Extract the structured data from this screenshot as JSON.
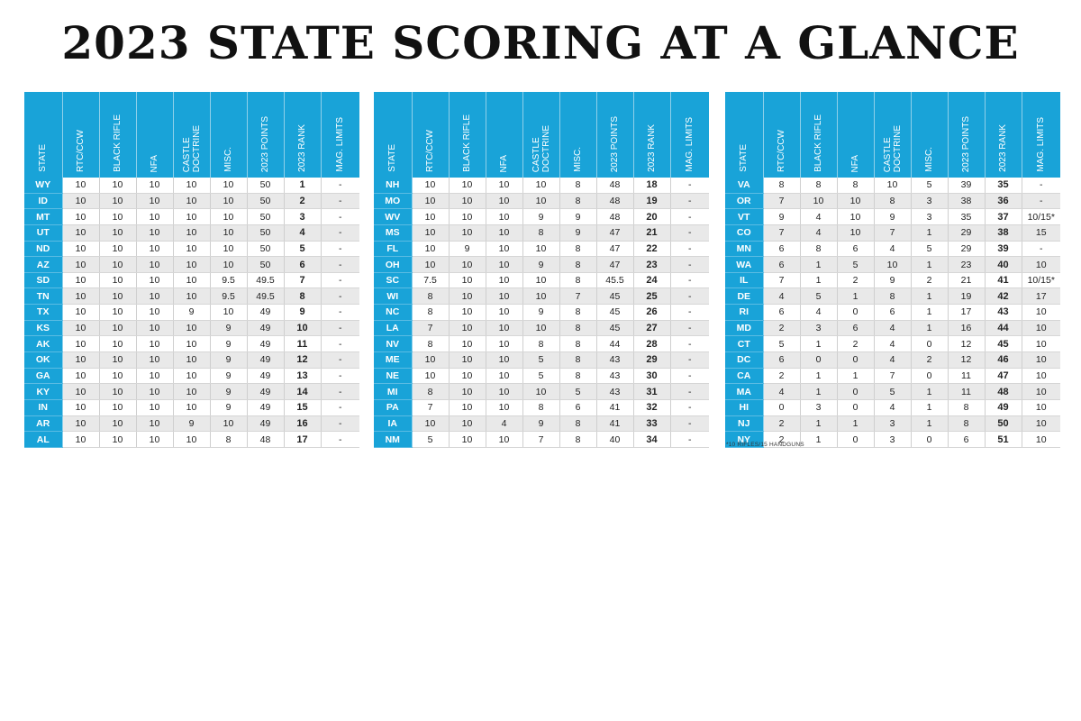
{
  "title": "2023 STATE SCORING AT A GLANCE",
  "colors": {
    "header": "#19a3d8",
    "stripe": "#e9e9e9"
  },
  "chart_data": {
    "type": "table",
    "title": "2023 STATE SCORING AT A GLANCE",
    "columns": [
      "STATE",
      "RTC/CCW",
      "BLACK RIFLE",
      "NFA",
      "CASTLE\nDOCTRINE",
      "MISC.",
      "2023 POINTS",
      "2023 RANK",
      "MAG. LIMITS"
    ],
    "tables": [
      {
        "rows": [
          [
            "WY",
            "10",
            "10",
            "10",
            "10",
            "10",
            "50",
            "1",
            "-"
          ],
          [
            "ID",
            "10",
            "10",
            "10",
            "10",
            "10",
            "50",
            "2",
            "-"
          ],
          [
            "MT",
            "10",
            "10",
            "10",
            "10",
            "10",
            "50",
            "3",
            "-"
          ],
          [
            "UT",
            "10",
            "10",
            "10",
            "10",
            "10",
            "50",
            "4",
            "-"
          ],
          [
            "ND",
            "10",
            "10",
            "10",
            "10",
            "10",
            "50",
            "5",
            "-"
          ],
          [
            "AZ",
            "10",
            "10",
            "10",
            "10",
            "10",
            "50",
            "6",
            "-"
          ],
          [
            "SD",
            "10",
            "10",
            "10",
            "10",
            "9.5",
            "49.5",
            "7",
            "-"
          ],
          [
            "TN",
            "10",
            "10",
            "10",
            "10",
            "9.5",
            "49.5",
            "8",
            "-"
          ],
          [
            "TX",
            "10",
            "10",
            "10",
            "9",
            "10",
            "49",
            "9",
            "-"
          ],
          [
            "KS",
            "10",
            "10",
            "10",
            "10",
            "9",
            "49",
            "10",
            "-"
          ],
          [
            "AK",
            "10",
            "10",
            "10",
            "10",
            "9",
            "49",
            "11",
            "-"
          ],
          [
            "OK",
            "10",
            "10",
            "10",
            "10",
            "9",
            "49",
            "12",
            "-"
          ],
          [
            "GA",
            "10",
            "10",
            "10",
            "10",
            "9",
            "49",
            "13",
            "-"
          ],
          [
            "KY",
            "10",
            "10",
            "10",
            "10",
            "9",
            "49",
            "14",
            "-"
          ],
          [
            "IN",
            "10",
            "10",
            "10",
            "10",
            "9",
            "49",
            "15",
            "-"
          ],
          [
            "AR",
            "10",
            "10",
            "10",
            "9",
            "10",
            "49",
            "16",
            "-"
          ],
          [
            "AL",
            "10",
            "10",
            "10",
            "10",
            "8",
            "48",
            "17",
            "-"
          ]
        ]
      },
      {
        "rows": [
          [
            "NH",
            "10",
            "10",
            "10",
            "10",
            "8",
            "48",
            "18",
            "-"
          ],
          [
            "MO",
            "10",
            "10",
            "10",
            "10",
            "8",
            "48",
            "19",
            "-"
          ],
          [
            "WV",
            "10",
            "10",
            "10",
            "9",
            "9",
            "48",
            "20",
            "-"
          ],
          [
            "MS",
            "10",
            "10",
            "10",
            "8",
            "9",
            "47",
            "21",
            "-"
          ],
          [
            "FL",
            "10",
            "9",
            "10",
            "10",
            "8",
            "47",
            "22",
            "-"
          ],
          [
            "OH",
            "10",
            "10",
            "10",
            "9",
            "8",
            "47",
            "23",
            "-"
          ],
          [
            "SC",
            "7.5",
            "10",
            "10",
            "10",
            "8",
            "45.5",
            "24",
            "-"
          ],
          [
            "WI",
            "8",
            "10",
            "10",
            "10",
            "7",
            "45",
            "25",
            "-"
          ],
          [
            "NC",
            "8",
            "10",
            "10",
            "9",
            "8",
            "45",
            "26",
            "-"
          ],
          [
            "LA",
            "7",
            "10",
            "10",
            "10",
            "8",
            "45",
            "27",
            "-"
          ],
          [
            "NV",
            "8",
            "10",
            "10",
            "8",
            "8",
            "44",
            "28",
            "-"
          ],
          [
            "ME",
            "10",
            "10",
            "10",
            "5",
            "8",
            "43",
            "29",
            "-"
          ],
          [
            "NE",
            "10",
            "10",
            "10",
            "5",
            "8",
            "43",
            "30",
            "-"
          ],
          [
            "MI",
            "8",
            "10",
            "10",
            "10",
            "5",
            "43",
            "31",
            "-"
          ],
          [
            "PA",
            "7",
            "10",
            "10",
            "8",
            "6",
            "41",
            "32",
            "-"
          ],
          [
            "IA",
            "10",
            "10",
            "4",
            "9",
            "8",
            "41",
            "33",
            "-"
          ],
          [
            "NM",
            "5",
            "10",
            "10",
            "7",
            "8",
            "40",
            "34",
            "-"
          ]
        ]
      },
      {
        "rows": [
          [
            "VA",
            "8",
            "8",
            "8",
            "10",
            "5",
            "39",
            "35",
            "-"
          ],
          [
            "OR",
            "7",
            "10",
            "10",
            "8",
            "3",
            "38",
            "36",
            "-"
          ],
          [
            "VT",
            "9",
            "4",
            "10",
            "9",
            "3",
            "35",
            "37",
            "10/15*"
          ],
          [
            "CO",
            "7",
            "4",
            "10",
            "7",
            "1",
            "29",
            "38",
            "15"
          ],
          [
            "MN",
            "6",
            "8",
            "6",
            "4",
            "5",
            "29",
            "39",
            "-"
          ],
          [
            "WA",
            "6",
            "1",
            "5",
            "10",
            "1",
            "23",
            "40",
            "10"
          ],
          [
            "IL",
            "7",
            "1",
            "2",
            "9",
            "2",
            "21",
            "41",
            "10/15*"
          ],
          [
            "DE",
            "4",
            "5",
            "1",
            "8",
            "1",
            "19",
            "42",
            "17"
          ],
          [
            "RI",
            "6",
            "4",
            "0",
            "6",
            "1",
            "17",
            "43",
            "10"
          ],
          [
            "MD",
            "2",
            "3",
            "6",
            "4",
            "1",
            "16",
            "44",
            "10"
          ],
          [
            "CT",
            "5",
            "1",
            "2",
            "4",
            "0",
            "12",
            "45",
            "10"
          ],
          [
            "DC",
            "6",
            "0",
            "0",
            "4",
            "2",
            "12",
            "46",
            "10"
          ],
          [
            "CA",
            "2",
            "1",
            "1",
            "7",
            "0",
            "11",
            "47",
            "10"
          ],
          [
            "MA",
            "4",
            "1",
            "0",
            "5",
            "1",
            "11",
            "48",
            "10"
          ],
          [
            "HI",
            "0",
            "3",
            "0",
            "4",
            "1",
            "8",
            "49",
            "10"
          ],
          [
            "NJ",
            "2",
            "1",
            "1",
            "3",
            "1",
            "8",
            "50",
            "10"
          ],
          [
            "NY",
            "2",
            "1",
            "0",
            "3",
            "0",
            "6",
            "51",
            "10"
          ]
        ]
      }
    ],
    "footnote": "*10 RIFLES/15 HANDGUNS"
  }
}
